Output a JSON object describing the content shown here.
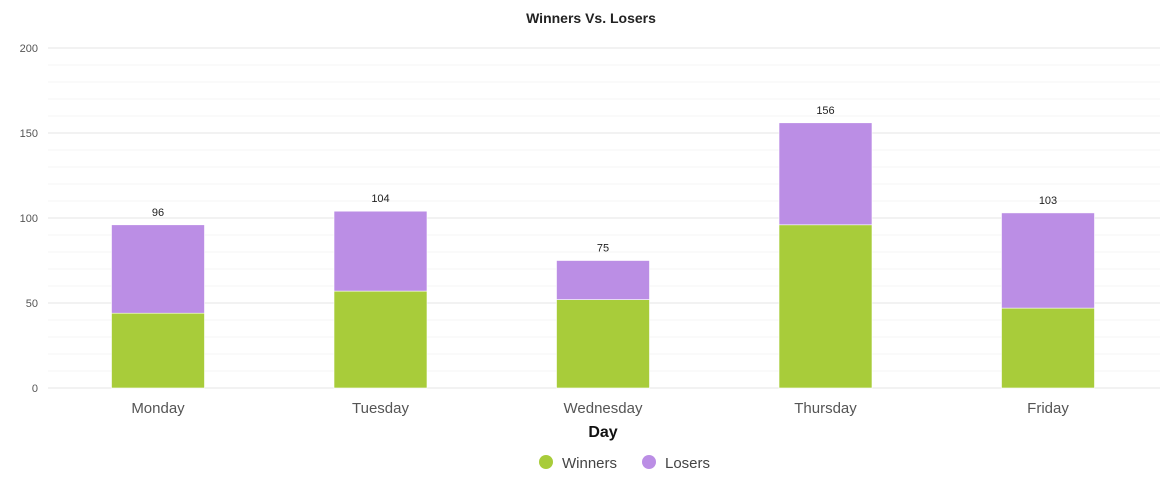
{
  "chart_data": {
    "type": "bar",
    "stacked": true,
    "title": "Winners Vs. Losers",
    "xlabel": "Day",
    "ylabel": "",
    "categories": [
      "Monday",
      "Tuesday",
      "Wednesday",
      "Thursday",
      "Friday"
    ],
    "series": [
      {
        "name": "Winners",
        "color": "#a8cc3a",
        "values": [
          44,
          57,
          52,
          96,
          47
        ]
      },
      {
        "name": "Losers",
        "color": "#bb8ee5",
        "values": [
          52,
          47,
          23,
          60,
          56
        ]
      }
    ],
    "totals": [
      "96",
      "104",
      "75",
      "156",
      "103"
    ],
    "ylim": [
      0,
      200
    ],
    "yticks": [
      "0",
      "50",
      "100",
      "150",
      "200"
    ],
    "grid": true,
    "legend": "bottom-center"
  }
}
